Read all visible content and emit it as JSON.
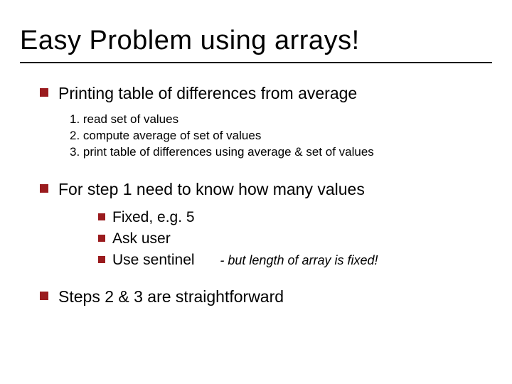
{
  "title": "Easy Problem using arrays!",
  "bullet1": {
    "text": "Printing table of differences from average"
  },
  "steps": {
    "s1": "1. read set of values",
    "s2": "2. compute average of set of values",
    "s3": "3. print table of differences using average & set of values"
  },
  "bullet2": {
    "text": "For step 1 need to know how many values"
  },
  "sub": {
    "a": "Fixed, e.g. 5",
    "b": "Ask user",
    "c": "Use sentinel",
    "c_note": "- but length of array is fixed!"
  },
  "bullet3": {
    "text": "Steps 2 & 3 are straightforward"
  },
  "colors": {
    "bullet": "#9a1b1e",
    "text": "#000000",
    "bg": "#ffffff"
  }
}
